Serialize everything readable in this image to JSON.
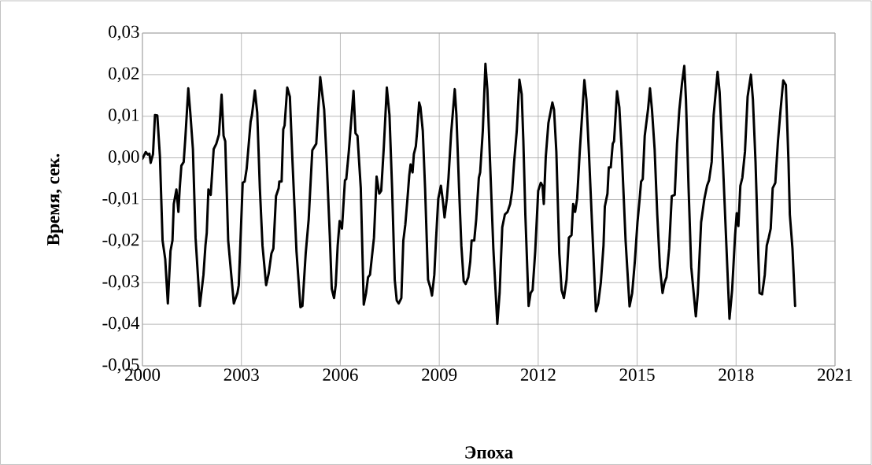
{
  "chart_data": {
    "type": "line",
    "xlabel": "Эпоха",
    "ylabel": "Время, сек.",
    "xlim": [
      2000,
      2021
    ],
    "xticks": [
      2000,
      2003,
      2006,
      2009,
      2012,
      2015,
      2018,
      2021
    ],
    "ylim": [
      -0.05,
      0.03
    ],
    "yticks": [
      {
        "value": -0.05,
        "label": "-0,05"
      },
      {
        "value": -0.04,
        "label": "-0,04"
      },
      {
        "value": -0.03,
        "label": "-0,03"
      },
      {
        "value": -0.02,
        "label": "-0,02"
      },
      {
        "value": -0.01,
        "label": "-0,01"
      },
      {
        "value": 0,
        "label": "0,00"
      },
      {
        "value": 0.01,
        "label": "0,01"
      },
      {
        "value": 0.02,
        "label": "0,02"
      },
      {
        "value": 0.03,
        "label": "0,03"
      }
    ],
    "grid": true,
    "marker": "none",
    "line_style": "solid",
    "series": [
      {
        "color": "#000000",
        "x": [
          2000.0,
          2000.1,
          2000.16,
          2000.21,
          2000.25,
          2000.32,
          2000.38,
          2000.45,
          2000.53,
          2000.61,
          2000.69,
          2000.77,
          2000.85,
          2000.91,
          2000.95,
          2001.03,
          2001.09,
          2001.13,
          2001.18,
          2001.25,
          2001.3,
          2001.39,
          2001.45,
          2001.53,
          2001.61,
          2001.74,
          2001.85,
          2001.91,
          2001.95,
          2002.0,
          2002.07,
          2002.16,
          2002.24,
          2002.32,
          2002.4,
          2002.46,
          2002.51,
          2002.6,
          2002.77,
          2002.88,
          2002.92,
          2003.04,
          2003.1,
          2003.16,
          2003.28,
          2003.32,
          2003.41,
          2003.48,
          2003.56,
          2003.64,
          2003.75,
          2003.83,
          2003.91,
          2003.97,
          2004.05,
          2004.13,
          2004.15,
          2004.22,
          2004.27,
          2004.31,
          2004.39,
          2004.47,
          2004.55,
          2004.67,
          2004.79,
          2004.85,
          2004.95,
          2005.04,
          2005.15,
          2005.27,
          2005.39,
          2005.51,
          2005.58,
          2005.68,
          2005.74,
          2005.81,
          2005.86,
          2005.92,
          2005.98,
          2006.05,
          2006.14,
          2006.18,
          2006.26,
          2006.4,
          2006.46,
          2006.52,
          2006.62,
          2006.71,
          2006.78,
          2006.84,
          2006.9,
          2007.02,
          2007.1,
          2007.18,
          2007.24,
          2007.32,
          2007.41,
          2007.49,
          2007.57,
          2007.65,
          2007.71,
          2007.77,
          2007.85,
          2007.91,
          2007.97,
          2008.03,
          2008.09,
          2008.13,
          2008.19,
          2008.23,
          2008.29,
          2008.33,
          2008.39,
          2008.43,
          2008.5,
          2008.57,
          2008.66,
          2008.73,
          2008.78,
          2008.85,
          2008.9,
          2008.97,
          2009.05,
          2009.11,
          2009.16,
          2009.23,
          2009.28,
          2009.36,
          2009.47,
          2009.52,
          2009.6,
          2009.67,
          2009.74,
          2009.8,
          2009.88,
          2009.94,
          2009.98,
          2010.06,
          2010.12,
          2010.2,
          2010.24,
          2010.32,
          2010.4,
          2010.46,
          2010.54,
          2010.64,
          2010.76,
          2010.83,
          2010.91,
          2010.99,
          2011.07,
          2011.15,
          2011.21,
          2011.27,
          2011.35,
          2011.43,
          2011.5,
          2011.55,
          2011.61,
          2011.71,
          2011.77,
          2011.83,
          2011.91,
          2012.0,
          2012.08,
          2012.13,
          2012.17,
          2012.23,
          2012.31,
          2012.43,
          2012.48,
          2012.55,
          2012.64,
          2012.71,
          2012.78,
          2012.86,
          2012.93,
          2013.01,
          2013.06,
          2013.12,
          2013.18,
          2013.26,
          2013.4,
          2013.46,
          2013.54,
          2013.62,
          2013.75,
          2013.82,
          2013.9,
          2013.98,
          2014.02,
          2014.1,
          2014.14,
          2014.2,
          2014.26,
          2014.3,
          2014.39,
          2014.46,
          2014.53,
          2014.65,
          2014.77,
          2014.85,
          2014.93,
          2015.01,
          2015.07,
          2015.12,
          2015.17,
          2015.23,
          2015.29,
          2015.33,
          2015.39,
          2015.45,
          2015.53,
          2015.61,
          2015.69,
          2015.77,
          2015.83,
          2015.89,
          2015.97,
          2016.05,
          2016.14,
          2016.21,
          2016.28,
          2016.36,
          2016.43,
          2016.48,
          2016.56,
          2016.64,
          2016.78,
          2016.84,
          2016.94,
          2017.04,
          2017.12,
          2017.18,
          2017.26,
          2017.32,
          2017.44,
          2017.5,
          2017.6,
          2017.7,
          2017.8,
          2017.88,
          2017.97,
          2018.02,
          2018.07,
          2018.13,
          2018.19,
          2018.27,
          2018.35,
          2018.45,
          2018.51,
          2018.59,
          2018.71,
          2018.79,
          2018.87,
          2018.93,
          2018.99,
          2019.05,
          2019.11,
          2019.19,
          2019.27,
          2019.35,
          2019.43,
          2019.51,
          2019.59,
          2019.63,
          2019.71,
          2019.79
        ],
        "values": [
          -0.0002,
          0.0014,
          0.0008,
          0.001,
          -0.0012,
          0.0009,
          0.0103,
          0.0102,
          0.0003,
          -0.0199,
          -0.0243,
          -0.035,
          -0.0224,
          -0.0199,
          -0.0111,
          -0.0076,
          -0.013,
          -0.0073,
          -0.0019,
          -0.001,
          0.0047,
          0.0167,
          0.0109,
          0.0021,
          -0.0192,
          -0.0356,
          -0.0281,
          -0.0211,
          -0.018,
          -0.0076,
          -0.0089,
          0.0021,
          0.0034,
          0.0056,
          0.0152,
          0.0053,
          0.004,
          -0.0199,
          -0.035,
          -0.0325,
          -0.0306,
          -0.006,
          -0.0057,
          -0.0026,
          0.0087,
          0.0103,
          0.0162,
          0.0109,
          -0.0073,
          -0.0211,
          -0.0306,
          -0.0277,
          -0.023,
          -0.0218,
          -0.0092,
          -0.0073,
          -0.0057,
          -0.0057,
          0.0069,
          0.0078,
          0.0169,
          0.0147,
          -0.001,
          -0.0224,
          -0.0359,
          -0.0356,
          -0.023,
          -0.0148,
          0.0018,
          0.0034,
          0.0194,
          0.0116,
          0.0003,
          -0.0186,
          -0.0315,
          -0.0337,
          -0.0306,
          -0.0211,
          -0.0152,
          -0.017,
          -0.0054,
          -0.0051,
          0.0018,
          0.0161,
          0.0059,
          0.0053,
          -0.0073,
          -0.0353,
          -0.0325,
          -0.0287,
          -0.0281,
          -0.0192,
          -0.0045,
          -0.0086,
          -0.0079,
          0.0028,
          0.0169,
          0.0103,
          -0.0073,
          -0.0293,
          -0.0343,
          -0.035,
          -0.0337,
          -0.0199,
          -0.0161,
          -0.0104,
          -0.0042,
          -0.0016,
          -0.0035,
          0.0009,
          0.0028,
          0.0065,
          0.0133,
          0.0122,
          0.0065,
          -0.0073,
          -0.0293,
          -0.0312,
          -0.0331,
          -0.0281,
          -0.0199,
          -0.0098,
          -0.0067,
          -0.0104,
          -0.0143,
          -0.0098,
          -0.0048,
          0.0059,
          0.0165,
          0.0103,
          -0.0073,
          -0.0211,
          -0.0296,
          -0.0303,
          -0.0287,
          -0.0249,
          -0.0199,
          -0.0199,
          -0.0148,
          -0.0048,
          -0.0035,
          0.0065,
          0.0226,
          0.0163,
          -0.001,
          -0.0218,
          -0.0399,
          -0.0325,
          -0.0167,
          -0.0136,
          -0.013,
          -0.0111,
          -0.0079,
          -0.001,
          0.0065,
          0.0188,
          0.0153,
          0.004,
          -0.0136,
          -0.0356,
          -0.0325,
          -0.0318,
          -0.0224,
          -0.0079,
          -0.006,
          -0.0067,
          -0.0111,
          0.0003,
          0.0084,
          0.0133,
          0.0116,
          0.0015,
          -0.023,
          -0.0318,
          -0.0337,
          -0.0293,
          -0.0192,
          -0.0186,
          -0.0111,
          -0.013,
          -0.0098,
          0.0015,
          0.0187,
          0.0141,
          0.0009,
          -0.0136,
          -0.0369,
          -0.035,
          -0.0299,
          -0.0211,
          -0.0117,
          -0.0086,
          -0.0023,
          -0.0023,
          0.0034,
          0.004,
          0.016,
          0.0122,
          0.0021,
          -0.0199,
          -0.0357,
          -0.0325,
          -0.0249,
          -0.0155,
          -0.0104,
          -0.0057,
          -0.0051,
          0.0053,
          0.0091,
          0.0116,
          0.0167,
          0.0116,
          0.0021,
          -0.0136,
          -0.0262,
          -0.0325,
          -0.03,
          -0.0287,
          -0.0218,
          -0.0092,
          -0.0089,
          0.0034,
          0.0116,
          0.0179,
          0.0221,
          0.0141,
          -0.0073,
          -0.0262,
          -0.0381,
          -0.0325,
          -0.0155,
          -0.0098,
          -0.0067,
          -0.0054,
          -0.001,
          0.0103,
          0.0207,
          0.0159,
          -0.001,
          -0.0199,
          -0.0387,
          -0.0318,
          -0.0186,
          -0.0133,
          -0.0164,
          -0.0067,
          -0.0048,
          0.0015,
          0.0147,
          0.02,
          0.0141,
          -0.001,
          -0.0325,
          -0.0328,
          -0.0281,
          -0.0211,
          -0.0192,
          -0.017,
          -0.0073,
          -0.006,
          0.004,
          0.0116,
          0.0186,
          0.0175,
          -0.001,
          -0.0136,
          -0.0218,
          -0.0356
        ]
      }
    ]
  }
}
